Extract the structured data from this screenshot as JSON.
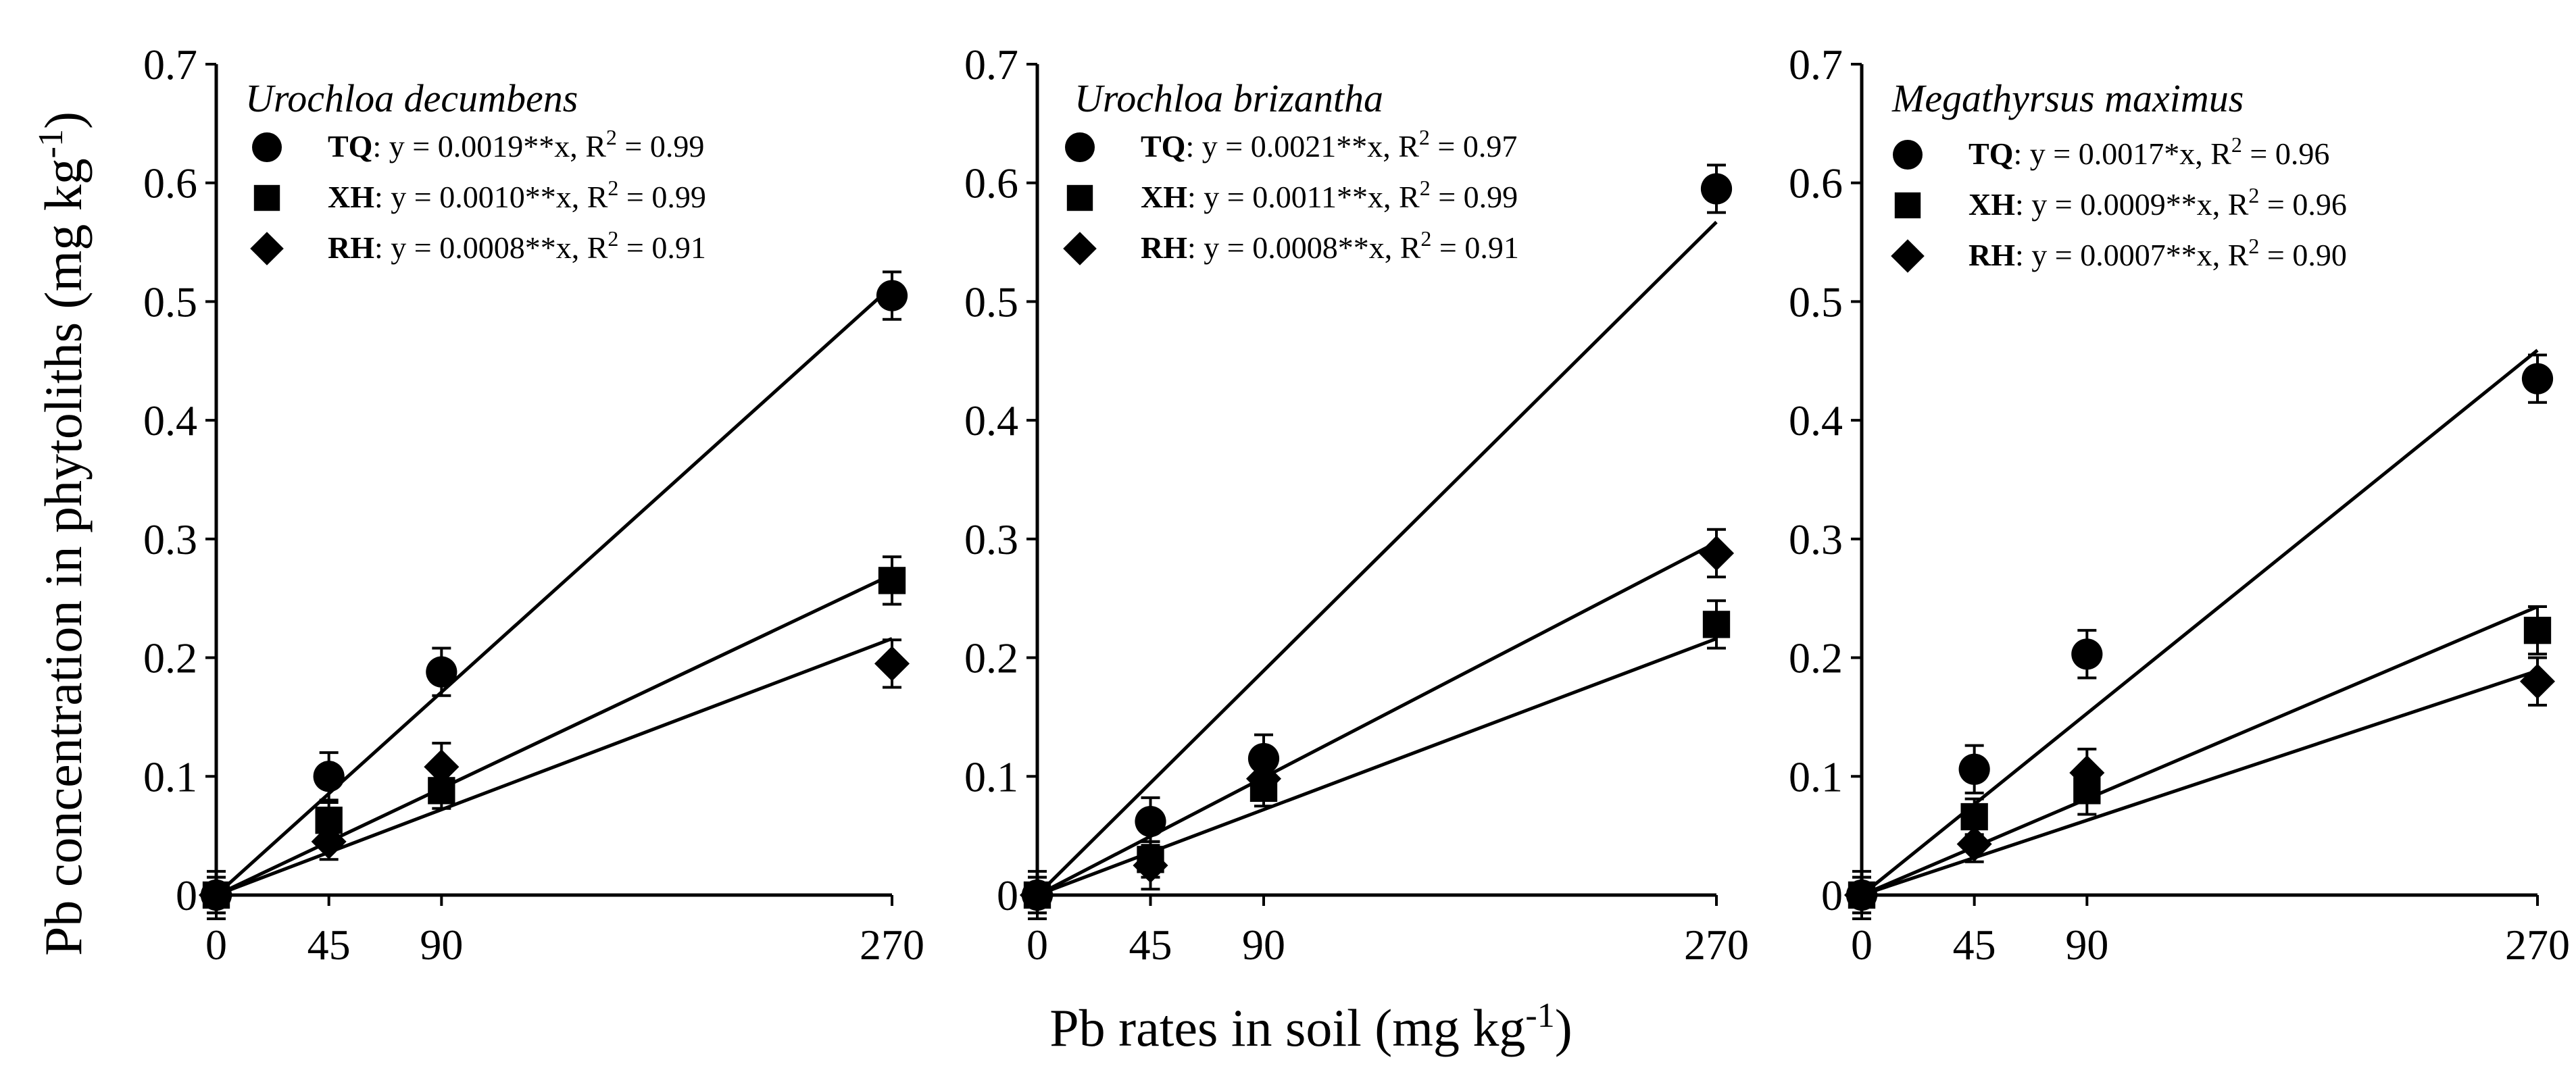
{
  "figure": {
    "ylabel": "Pb concentration in phytoliths  (mg kg",
    "ylabel_sup": "-1",
    "ylabel_close": ")",
    "xlabel": "Pb rates in soil (mg kg",
    "xlabel_sup": "-1",
    "xlabel_close": ")"
  },
  "chart_data": [
    {
      "type": "scatter",
      "title": "Urochloa decumbens",
      "x_ticks": [
        "0",
        "45",
        "90",
        "270"
      ],
      "y_ticks": [
        "0",
        "0.1",
        "0.2",
        "0.3",
        "0.4",
        "0.5",
        "0.6",
        "0.7"
      ],
      "xlim": [
        0,
        270
      ],
      "ylim": [
        0,
        0.7
      ],
      "series": [
        {
          "name": "TQ",
          "marker": "circle",
          "x": [
            0,
            45,
            90,
            270
          ],
          "y": [
            0.0,
            0.1,
            0.188,
            0.505
          ],
          "err": [
            0.02,
            0.02,
            0.02,
            0.02
          ],
          "slope": 0.0019,
          "eq": ": y = 0.0019**x, R",
          "r2sup": "2",
          "r2val": " = 0.99"
        },
        {
          "name": "XH",
          "marker": "square",
          "x": [
            0,
            45,
            90,
            270
          ],
          "y": [
            0.0,
            0.063,
            0.088,
            0.265
          ],
          "err": [
            0.015,
            0.015,
            0.015,
            0.02
          ],
          "slope": 0.001,
          "eq": ": y = 0.0010**x, R",
          "r2sup": "2",
          "r2val": " = 0.99"
        },
        {
          "name": "RH",
          "marker": "diamond",
          "x": [
            0,
            45,
            90,
            270
          ],
          "y": [
            0.0,
            0.045,
            0.108,
            0.195
          ],
          "err": [
            0.015,
            0.015,
            0.02,
            0.02
          ],
          "slope": 0.0008,
          "eq": ": y = 0.0008**x, R",
          "r2sup": "2",
          "r2val": " = 0.91"
        }
      ]
    },
    {
      "type": "scatter",
      "title": "Urochloa brizantha",
      "x_ticks": [
        "0",
        "45",
        "90",
        "270"
      ],
      "y_ticks": [
        "0",
        "0.1",
        "0.2",
        "0.3",
        "0.4",
        "0.5",
        "0.6",
        "0.7"
      ],
      "xlim": [
        0,
        270
      ],
      "ylim": [
        0,
        0.7
      ],
      "series": [
        {
          "name": "TQ",
          "marker": "circle",
          "x": [
            0,
            45,
            90,
            270
          ],
          "y": [
            0.0,
            0.062,
            0.115,
            0.595
          ],
          "err": [
            0.02,
            0.02,
            0.02,
            0.02
          ],
          "slope": 0.0021,
          "eq": ": y = 0.0021**x, R",
          "r2sup": "2",
          "r2val": " = 0.97"
        },
        {
          "name": "XH",
          "marker": "square",
          "x": [
            0,
            45,
            90,
            270
          ],
          "y": [
            0.0,
            0.03,
            0.09,
            0.228
          ],
          "err": [
            0.015,
            0.015,
            0.015,
            0.02
          ],
          "slope": 0.0011,
          "eq": ": y = 0.0011**x, R",
          "r2sup": "2",
          "r2val": " = 0.99"
        },
        {
          "name": "RH",
          "marker": "diamond",
          "x": [
            0,
            45,
            90,
            270
          ],
          "y": [
            0.0,
            0.025,
            0.098,
            0.288
          ],
          "err": [
            0.015,
            0.02,
            0.015,
            0.02
          ],
          "slope": 0.0008,
          "eq": ": y = 0.0008**x, R",
          "r2sup": "2",
          "r2val": " = 0.91"
        }
      ]
    },
    {
      "type": "scatter",
      "title": "Megathyrsus maximus",
      "x_ticks": [
        "0",
        "45",
        "90",
        "270"
      ],
      "y_ticks": [
        "0",
        "0.1",
        "0.2",
        "0.3",
        "0.4",
        "0.5",
        "0.6",
        "0.7"
      ],
      "xlim": [
        0,
        270
      ],
      "ylim": [
        0,
        0.7
      ],
      "series": [
        {
          "name": "TQ",
          "marker": "circle",
          "x": [
            0,
            45,
            90,
            270
          ],
          "y": [
            0.0,
            0.106,
            0.203,
            0.435
          ],
          "err": [
            0.02,
            0.02,
            0.02,
            0.02
          ],
          "slope": 0.0017,
          "eq": ": y = 0.0017*x, R",
          "r2sup": "2",
          "r2val": " = 0.96"
        },
        {
          "name": "XH",
          "marker": "square",
          "x": [
            0,
            45,
            90,
            270
          ],
          "y": [
            0.0,
            0.066,
            0.088,
            0.223
          ],
          "err": [
            0.015,
            0.015,
            0.02,
            0.02
          ],
          "slope": 0.0009,
          "eq": ": y = 0.0009**x, R",
          "r2sup": "2",
          "r2val": " = 0.96"
        },
        {
          "name": "RH",
          "marker": "diamond",
          "x": [
            0,
            45,
            90,
            270
          ],
          "y": [
            0.0,
            0.043,
            0.103,
            0.18
          ],
          "err": [
            0.015,
            0.015,
            0.02,
            0.02
          ],
          "slope": 0.0007,
          "eq": ": y = 0.0007**x, R",
          "r2sup": "2",
          "r2val": " = 0.90"
        }
      ]
    }
  ]
}
